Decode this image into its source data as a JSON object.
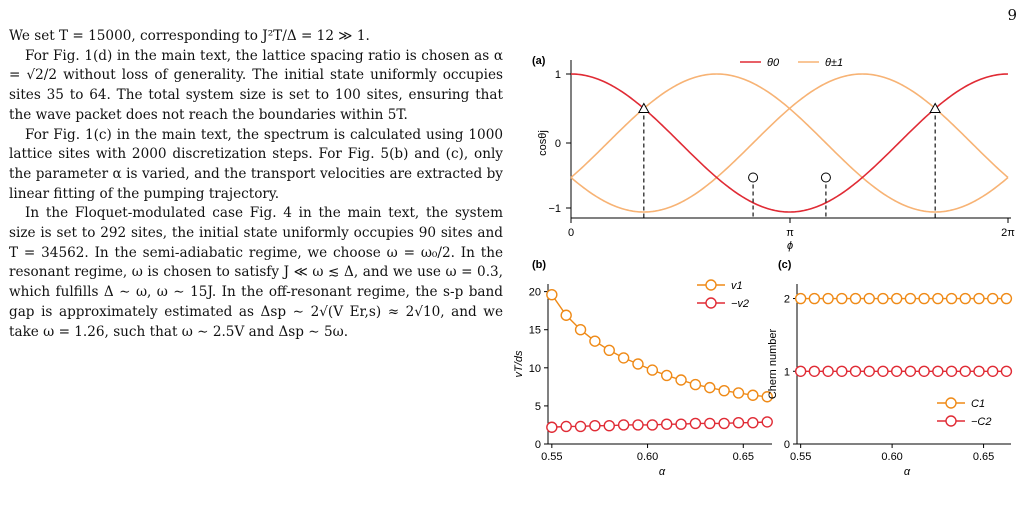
{
  "page_number": "9",
  "paragraphs": [
    "We set T = 15000, corresponding to J²T/Δ = 12 ≫ 1.",
    "For Fig. 1(d) in the main text, the lattice spacing ratio is chosen as α = √2/2 without loss of generality. The initial state uniformly occupies sites 35 to 64. The total system size is set to 100 sites, ensuring that the wave packet does not reach the boundaries within 5T.",
    "For Fig. 1(c) in the main text, the spectrum is calculated using 1000 lattice sites with 2000 discretization steps. For Fig. 5(b) and (c), only the parameter α is varied, and the transport velocities are extracted by linear fitting of the pumping trajectory.",
    "In the Floquet-modulated case Fig. 4 in the main text, the system size is set to 292 sites, the initial state uniformly occupies 90 sites and T = 34562. In the semi-adiabatic regime, we choose ω = ω₀/2. In the resonant regime, ω is chosen to satisfy J ≪ ω ≲ Δ, and we use ω = 0.3, which fulfills Δ ∼ ω, ω ∼ 15J. In the off-resonant regime, the s-p band gap is approximately estimated as Δsp ∼ 2√(V Er,s) ≈ 2√10, and we take ω = 1.26, such that ω ∼ 2.5V and Δsp ∼ 5ω."
  ],
  "colors": {
    "red": "#e02b35",
    "orange": "#f7b375",
    "orange_marker": "#ef8a17"
  },
  "chart_data": [
    {
      "type": "line",
      "panel_label": "(a)",
      "xlabel": "ϕ",
      "ylabel": "cosθj",
      "xticks": [
        "0",
        "π",
        "2π"
      ],
      "yticks": [
        "−1",
        "0",
        "1"
      ],
      "xlim": [
        0,
        6.2832
      ],
      "ylim": [
        -1.15,
        1.15
      ],
      "legend": [
        "θ0",
        "θ±1"
      ],
      "legend_position": "top-right",
      "series": [
        {
          "name": "θ0",
          "phase_shift": 0
        },
        {
          "name": "θ±1",
          "phase_shifts": [
            2.0944,
            -2.0944
          ]
        }
      ],
      "triangle_markers": [
        {
          "x": 1.0472,
          "y": 0.5
        },
        {
          "x": 5.236,
          "y": 0.5
        }
      ],
      "circle_markers": [
        {
          "x": 2.618,
          "y": -0.5
        },
        {
          "x": 3.6652,
          "y": -0.5
        }
      ]
    },
    {
      "type": "line",
      "panel_label": "(b)",
      "xlabel": "α",
      "ylabel": "vT/ds",
      "xticks": [
        "0.55",
        "0.60",
        "0.65"
      ],
      "yticks": [
        "0",
        "5",
        "10",
        "15",
        "20"
      ],
      "xlim": [
        0.548,
        0.665
      ],
      "ylim": [
        0,
        21
      ],
      "legend_position": "top-right",
      "x": [
        0.55,
        0.5575,
        0.565,
        0.5725,
        0.58,
        0.5875,
        0.595,
        0.6025,
        0.61,
        0.6175,
        0.625,
        0.6325,
        0.64,
        0.6475,
        0.655,
        0.6625
      ],
      "series": [
        {
          "name": "v1",
          "values": [
            19.6,
            16.9,
            15.0,
            13.5,
            12.3,
            11.3,
            10.5,
            9.7,
            9.0,
            8.4,
            7.8,
            7.4,
            7.0,
            6.7,
            6.4,
            6.2
          ]
        },
        {
          "name": "−v2",
          "values": [
            2.2,
            2.3,
            2.3,
            2.4,
            2.4,
            2.5,
            2.5,
            2.5,
            2.6,
            2.6,
            2.7,
            2.7,
            2.7,
            2.8,
            2.8,
            2.9
          ]
        }
      ]
    },
    {
      "type": "line",
      "panel_label": "(c)",
      "xlabel": "α",
      "ylabel": "Chern number",
      "xticks": [
        "0.55",
        "0.60",
        "0.65"
      ],
      "yticks": [
        "0",
        "1",
        "2"
      ],
      "xlim": [
        0.548,
        0.665
      ],
      "ylim": [
        0,
        2.2
      ],
      "legend_position": "bottom-right",
      "x": [
        0.55,
        0.5575,
        0.565,
        0.5725,
        0.58,
        0.5875,
        0.595,
        0.6025,
        0.61,
        0.6175,
        0.625,
        0.6325,
        0.64,
        0.6475,
        0.655,
        0.6625
      ],
      "series": [
        {
          "name": "C1",
          "values": [
            2,
            2,
            2,
            2,
            2,
            2,
            2,
            2,
            2,
            2,
            2,
            2,
            2,
            2,
            2,
            2
          ]
        },
        {
          "name": "−C2",
          "values": [
            1,
            1,
            1,
            1,
            1,
            1,
            1,
            1,
            1,
            1,
            1,
            1,
            1,
            1,
            1,
            1
          ]
        }
      ]
    }
  ]
}
